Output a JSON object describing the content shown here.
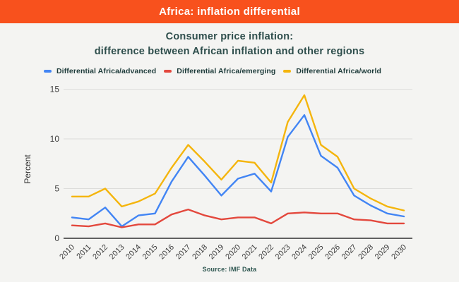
{
  "header": {
    "title": "Africa: inflation differential",
    "background_color": "#f8511d",
    "text_color": "#ffffff"
  },
  "chart": {
    "title_line1": "Consumer price inflation:",
    "title_line2": "difference between African inflation and other regions",
    "title_color": "#2e4e4c",
    "source": "Source: IMF Data",
    "source_color": "#2b544e"
  },
  "chart_data": {
    "type": "line",
    "title": "Consumer price inflation: difference between African inflation and other regions",
    "xlabel": "",
    "ylabel": "Percent",
    "ylim": [
      0,
      15
    ],
    "yticks": [
      0,
      5,
      10,
      15
    ],
    "grid": true,
    "legend_position": "top",
    "categories": [
      "2010",
      "2011",
      "2012",
      "2013",
      "2014",
      "2015",
      "2016",
      "2017",
      "2018",
      "2019",
      "2020",
      "2021",
      "2022",
      "2023",
      "2024",
      "2025",
      "2026",
      "2027",
      "2028",
      "2029",
      "2030"
    ],
    "series": [
      {
        "name": "Differential Africa/advanced",
        "color": "#4285f4",
        "values": [
          2.1,
          1.9,
          3.1,
          1.2,
          2.3,
          2.5,
          5.7,
          8.2,
          6.3,
          4.3,
          6.0,
          6.5,
          4.7,
          10.2,
          12.4,
          8.3,
          7.1,
          4.3,
          3.3,
          2.5,
          2.2
        ]
      },
      {
        "name": "Differential Africa/emerging",
        "color": "#e3483d",
        "values": [
          1.3,
          1.2,
          1.5,
          1.1,
          1.4,
          1.4,
          2.4,
          2.9,
          2.3,
          1.9,
          2.1,
          2.1,
          1.5,
          2.5,
          2.6,
          2.5,
          2.5,
          1.9,
          1.8,
          1.5,
          1.5
        ]
      },
      {
        "name": "Differential Africa/world",
        "color": "#f4b50d",
        "values": [
          4.2,
          4.2,
          5.0,
          3.2,
          3.7,
          4.5,
          7.1,
          9.4,
          7.7,
          5.9,
          7.8,
          7.6,
          5.6,
          11.7,
          14.4,
          9.4,
          8.2,
          5.0,
          4.0,
          3.2,
          2.8
        ]
      }
    ],
    "grid_color": "#dcdcda",
    "axis_line_color": "#616161"
  }
}
